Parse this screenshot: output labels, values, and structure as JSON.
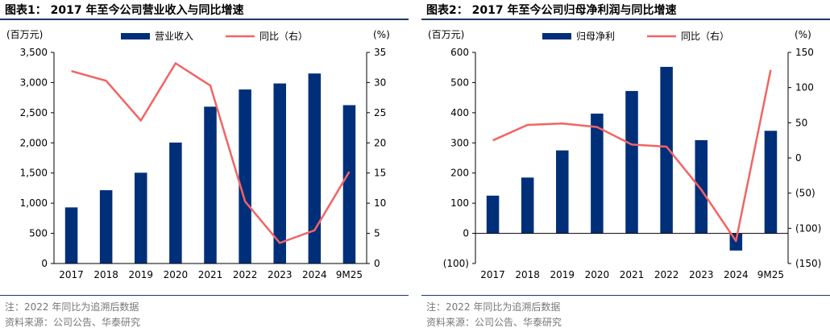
{
  "charts": [
    {
      "title": "图表1：  2017 年至今公司营业收入与同比增速",
      "note": "注：2022 年同比为追溯后数据",
      "source": "资料来源：公司公告、华泰研究",
      "colors": {
        "bar": "#002F7A",
        "line": "#F26464"
      },
      "chart_data": {
        "type": "bar",
        "categories": [
          "2017",
          "2018",
          "2019",
          "2020",
          "2021",
          "2022",
          "2023",
          "2024",
          "9M25"
        ],
        "series": [
          {
            "name": "营业收入",
            "type": "bar",
            "axis": "left",
            "values": [
              930,
              1215,
              1505,
              2005,
              2600,
              2885,
              2985,
              3150,
              2625
            ]
          },
          {
            "name": "同比（右）",
            "type": "line",
            "axis": "right",
            "values": [
              31.9,
              30.3,
              23.7,
              33.2,
              29.5,
              10.3,
              3.4,
              5.5,
              15.2
            ]
          }
        ],
        "ylabel": "(百万元)",
        "y2label": "(%)",
        "ylim": [
          0,
          3500
        ],
        "y2lim": [
          0,
          35
        ],
        "yticks": [
          0,
          500,
          1000,
          1500,
          2000,
          2500,
          3000,
          3500
        ],
        "ytick_labels": [
          "0",
          "500",
          "1,000",
          "1,500",
          "2,000",
          "2,500",
          "3,000",
          "3,500"
        ],
        "y2ticks": [
          0,
          5,
          10,
          15,
          20,
          25,
          30,
          35
        ],
        "y2tick_labels": [
          "0",
          "5",
          "10",
          "15",
          "20",
          "25",
          "30",
          "35"
        ],
        "legend": "top-center",
        "grid": false
      }
    },
    {
      "title": "图表2：  2017 年至今公司归母净利润与同比增速",
      "note": "注：2022 年同比为追溯后数据",
      "source": "资料来源：公司公告、华泰研究",
      "colors": {
        "bar": "#002F7A",
        "line": "#F26464"
      },
      "chart_data": {
        "type": "bar",
        "categories": [
          "2017",
          "2018",
          "2019",
          "2020",
          "2021",
          "2022",
          "2023",
          "2024",
          "9M25"
        ],
        "series": [
          {
            "name": "归母净利",
            "type": "bar",
            "axis": "left",
            "values": [
              125,
              185,
              275,
              397,
              472,
              552,
              309,
              -57,
              340
            ]
          },
          {
            "name": "同比（右）",
            "type": "line",
            "axis": "right",
            "values": [
              25,
              47,
              49,
              44,
              19,
              16,
              -45,
              -118,
              125
            ]
          }
        ],
        "ylabel": "(百万元)",
        "y2label": "(%)",
        "ylim": [
          -100,
          600
        ],
        "y2lim": [
          -150,
          150
        ],
        "yticks": [
          -100,
          0,
          100,
          200,
          300,
          400,
          500,
          600
        ],
        "ytick_labels": [
          "(100)",
          "0",
          "100",
          "200",
          "300",
          "400",
          "500",
          "600"
        ],
        "y2ticks": [
          -150,
          -100,
          -50,
          0,
          50,
          100,
          150
        ],
        "y2tick_labels": [
          "(150)",
          "(100)",
          "(50)",
          "0",
          "50",
          "100",
          "150"
        ],
        "legend": "top-center",
        "grid": false
      }
    }
  ]
}
